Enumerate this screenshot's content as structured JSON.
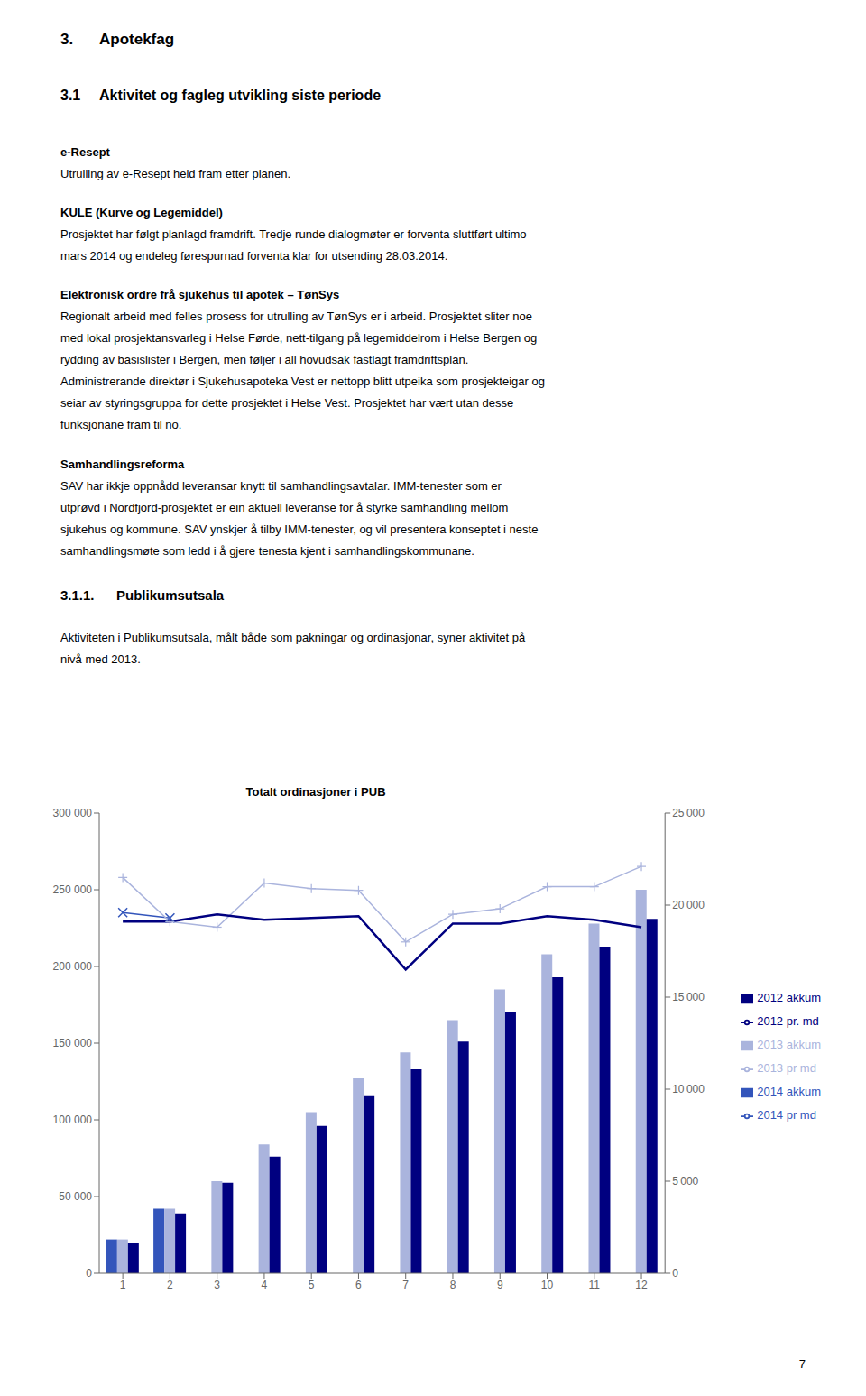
{
  "chart_data": {
    "type": "bar",
    "title": "Totalt ordinasjoner i PUB",
    "categories": [
      "1",
      "2",
      "3",
      "4",
      "5",
      "6",
      "7",
      "8",
      "9",
      "10",
      "11",
      "12"
    ],
    "series": [
      {
        "name": "2014 akkum",
        "type": "bar",
        "color": "#3355bb",
        "values": [
          22000,
          42000,
          null,
          null,
          null,
          null,
          null,
          null,
          null,
          null,
          null,
          null
        ]
      },
      {
        "name": "2013 akkum",
        "type": "bar",
        "color": "#aab4dd",
        "values": [
          22000,
          42000,
          60000,
          84000,
          105000,
          127000,
          144000,
          165000,
          185000,
          208000,
          228000,
          250000
        ]
      },
      {
        "name": "2012 akkum",
        "type": "bar",
        "color": "#000080",
        "values": [
          20000,
          39000,
          59000,
          76000,
          96000,
          116000,
          133000,
          151000,
          170000,
          193000,
          213000,
          231000
        ]
      },
      {
        "name": "2014 pr md",
        "type": "line",
        "axis": "y2",
        "color": "#3355bb",
        "marker": "x",
        "values": [
          19600,
          19300,
          null,
          null,
          null,
          null,
          null,
          null,
          null,
          null,
          null,
          null
        ]
      },
      {
        "name": "2013 pr md",
        "type": "line",
        "axis": "y2",
        "color": "#aab4dd",
        "marker": "+",
        "values": [
          21500,
          19100,
          18800,
          21200,
          20900,
          20800,
          18000,
          19500,
          19800,
          21000,
          21000,
          22100
        ]
      },
      {
        "name": "2012 pr. md",
        "type": "line",
        "axis": "y2",
        "color": "#000080",
        "values": [
          19100,
          19100,
          19500,
          19200,
          19300,
          19400,
          16500,
          19000,
          19000,
          19400,
          19200,
          18800
        ]
      }
    ],
    "ylim": [
      0,
      300000
    ],
    "yticks": [
      0,
      {
        "value": 50000,
        "label": "50 000"
      },
      {
        "value": 100000,
        "label": "100 000"
      },
      {
        "value": 150000,
        "label": "150 000"
      },
      {
        "value": 200000,
        "label": "200 000"
      },
      {
        "value": 250000,
        "label": "250 000"
      },
      {
        "value": 300000,
        "label": "300 000"
      }
    ],
    "y2lim": [
      0,
      25000
    ],
    "y2ticks": [
      0,
      {
        "value": 5000,
        "label": "5 000"
      },
      {
        "value": 10000,
        "label": "10 000"
      },
      {
        "value": 15000,
        "label": "15 000"
      },
      {
        "value": 20000,
        "label": "20 000"
      },
      {
        "value": 25000,
        "label": "25 000"
      }
    ],
    "grid": false,
    "legend": "right",
    "annotations": [
      "3.",
      "Apotekfag",
      "3.1",
      "Aktivitet og fagleg utvikling siste periode",
      "e-Resept",
      "Utrulling av e-Resept held fram etter planen.",
      "KULE (Kurve og Legemiddel)",
      "Prosjektet har følgt planlagd framdrift. Tredje runde dialogmøter er forventa sluttført ultimo",
      "mars 2014 og endeleg førespurnad forventa klar for utsending 28.03.2014.",
      "Elektronisk ordre frå sjukehus til apotek – TønSys",
      "Regionalt arbeid med felles prosess for utrulling av TønSys er i arbeid. Prosjektet sliter noe",
      "med lokal prosjektansvarleg i Helse Førde, nett-tilgang på legemiddelrom i Helse Bergen og",
      "rydding av basislister i Bergen, men føljer i all hovudsak fastlagt framdriftsplan.",
      "Administrerande direktør i Sjukehusapoteka Vest er nettopp blitt utpeika som prosjekteigar og",
      "seiar av styringsgruppa for dette prosjektet i Helse Vest. Prosjektet har vært utan desse",
      "funksjonane fram til no.",
      "Samhandlingsreforma",
      "SAV har ikkje oppnådd leveransar knytt til samhandlingsavtalar. IMM-tenester som er",
      "utprøvd i Nordfjord-prosjektet er ein aktuell leveranse for å styrke samhandling mellom",
      "sjukehus og kommune. SAV ynskjer å tilby IMM-tenester, og vil presentera konseptet i neste",
      "samhandlingsmøte som ledd i å gjere tenesta kjent i samhandlingskommunane.",
      "3.1.1.",
      "Publikumsutsala",
      "Aktiviteten i Publikumsutsala, målt både som pakningar og ordinasjonar, syner aktivitet på",
      "nivå med 2013.",
      "7"
    ]
  }
}
